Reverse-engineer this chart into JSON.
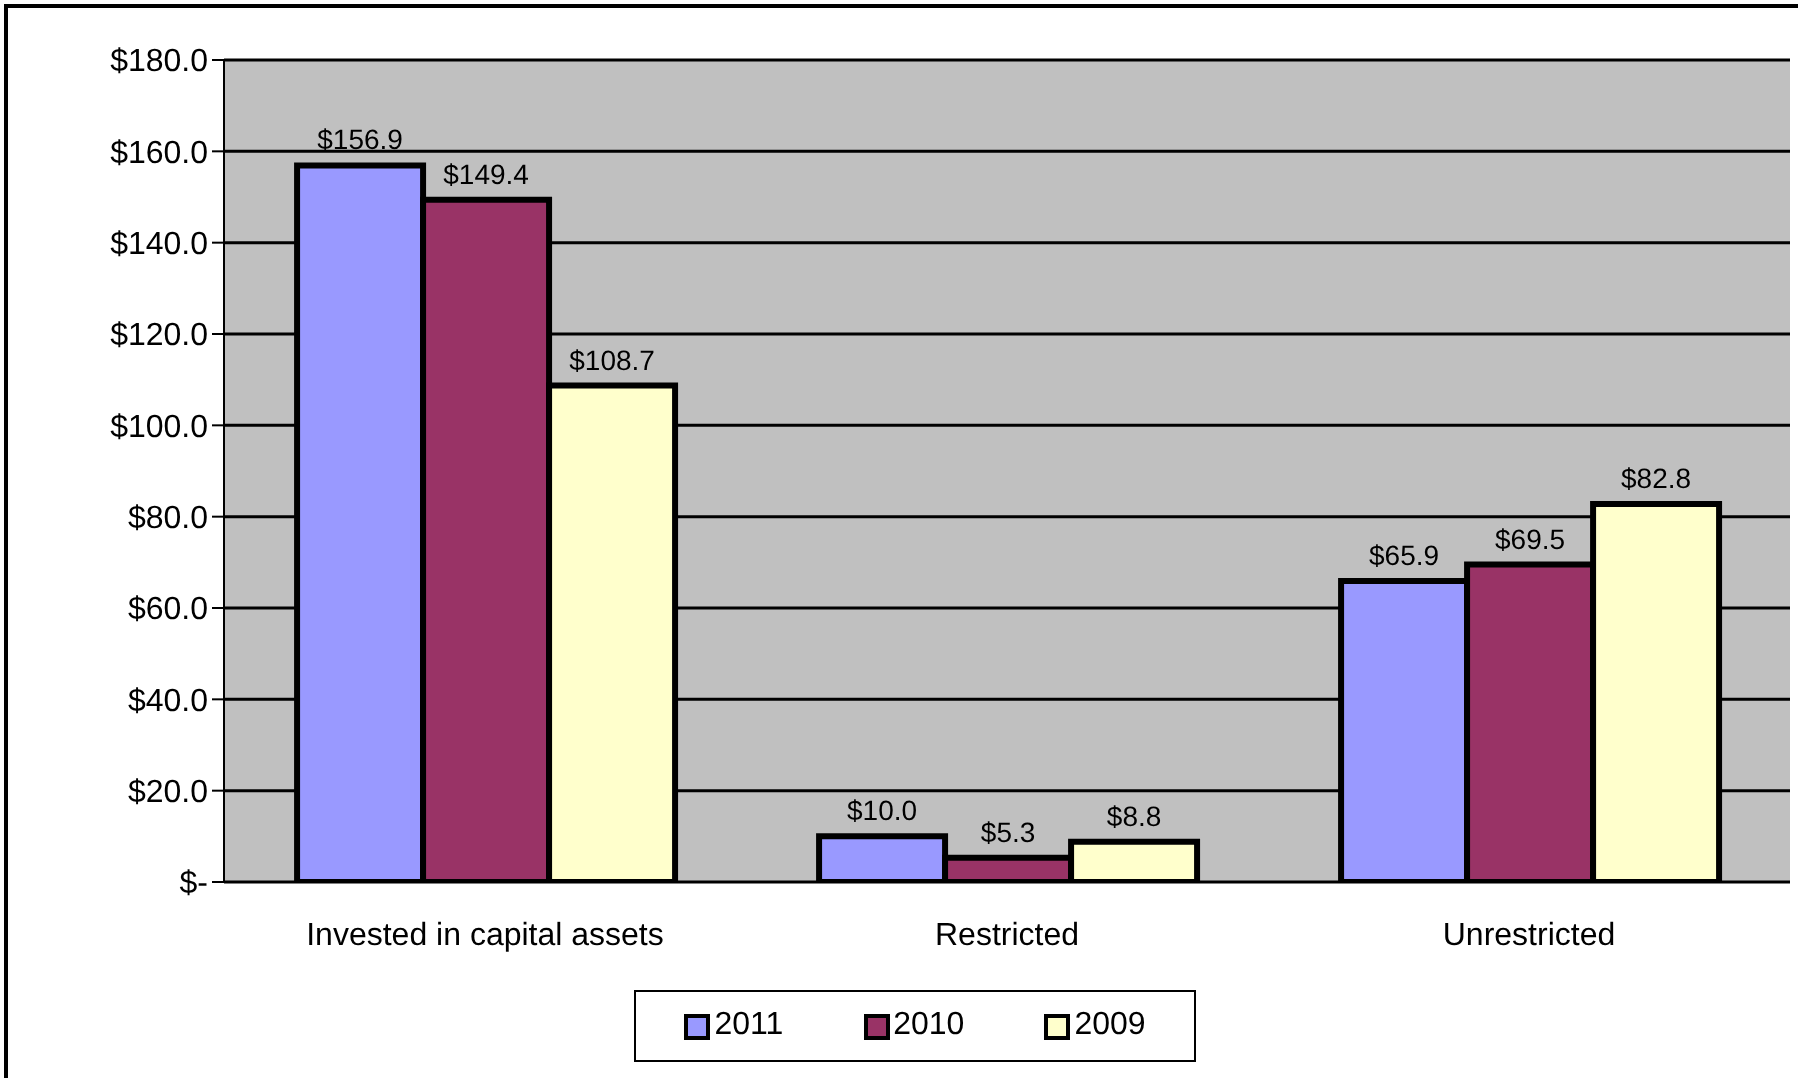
{
  "chart_data": {
    "type": "bar",
    "categories": [
      "Invested in capital assets",
      "Restricted",
      "Unrestricted"
    ],
    "series": [
      {
        "name": "2011",
        "color": "#9999ff",
        "values": [
          156.9,
          10.0,
          65.9
        ],
        "value_labels": [
          "$156.9",
          "$10.0",
          "$65.9"
        ]
      },
      {
        "name": "2010",
        "color": "#993366",
        "values": [
          149.4,
          5.3,
          69.5
        ],
        "value_labels": [
          "$149.4",
          "$5.3",
          "$69.5"
        ]
      },
      {
        "name": "2009",
        "color": "#ffffcc",
        "values": [
          108.7,
          8.8,
          82.8
        ],
        "value_labels": [
          "$108.7",
          "$8.8",
          "$82.8"
        ]
      }
    ],
    "ylim": [
      0,
      180
    ],
    "yticks": [
      {
        "value": 0,
        "label": "$-"
      },
      {
        "value": 20,
        "label": "$20.0"
      },
      {
        "value": 40,
        "label": "$40.0"
      },
      {
        "value": 60,
        "label": "$60.0"
      },
      {
        "value": 80,
        "label": "$80.0"
      },
      {
        "value": 100,
        "label": "$100.0"
      },
      {
        "value": 120,
        "label": "$120.0"
      },
      {
        "value": 140,
        "label": "$140.0"
      },
      {
        "value": 160,
        "label": "$160.0"
      },
      {
        "value": 180,
        "label": "$180.0"
      }
    ],
    "grid": "y",
    "legend": "bottom"
  }
}
